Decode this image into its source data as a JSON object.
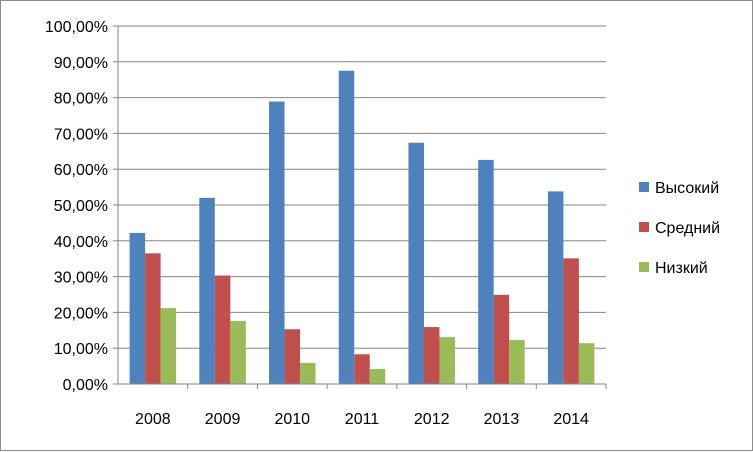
{
  "chart_data": {
    "type": "bar",
    "categories": [
      "2008",
      "2009",
      "2010",
      "2011",
      "2012",
      "2013",
      "2014"
    ],
    "series": [
      {
        "name": "Высокий",
        "color": "#4f81bd",
        "values": [
          42.2,
          52.0,
          78.9,
          87.5,
          67.4,
          62.6,
          53.8
        ]
      },
      {
        "name": "Средний",
        "color": "#c0504d",
        "values": [
          36.5,
          30.3,
          15.3,
          8.3,
          15.9,
          24.9,
          35.1
        ]
      },
      {
        "name": "Низкий",
        "color": "#9bbb59",
        "values": [
          21.2,
          17.6,
          5.9,
          4.2,
          13.1,
          12.3,
          11.4
        ]
      }
    ],
    "yticks": [
      "0,00%",
      "10,00%",
      "20,00%",
      "30,00%",
      "40,00%",
      "50,00%",
      "60,00%",
      "70,00%",
      "80,00%",
      "90,00%",
      "100,00%"
    ],
    "ylim": [
      0,
      100
    ],
    "grid": true,
    "legend": "right",
    "title": "",
    "xlabel": "",
    "ylabel": ""
  }
}
